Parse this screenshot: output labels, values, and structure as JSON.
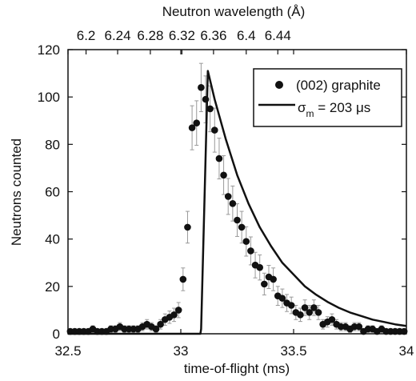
{
  "chart_data": {
    "type": "scatter",
    "xlabel": "time-of-flight (ms)",
    "ylabel": "Neutrons counted",
    "top_axis_label": "Neutron wavelength (Å)",
    "xlim": [
      32.5,
      34
    ],
    "ylim": [
      0,
      120
    ],
    "x_ticks": [
      "32.5",
      "33",
      "33.5",
      "34"
    ],
    "x_tick_values": [
      32.5,
      33,
      33.5,
      34
    ],
    "y_ticks": [
      "0",
      "20",
      "40",
      "60",
      "80",
      "100",
      "120"
    ],
    "y_tick_values": [
      0,
      20,
      40,
      60,
      80,
      100,
      120
    ],
    "top_ticks": [
      "6.2",
      "6.24",
      "6.28",
      "6.32",
      "6.36",
      "6.4",
      "6.44"
    ],
    "top_tick_positions_ms": [
      32.58,
      32.72,
      32.865,
      33.005,
      33.145,
      33.29,
      33.43
    ],
    "legend": {
      "placement": "top-right",
      "series_label": "(002) graphite",
      "model_label_prefix": "σ",
      "model_label_sub": "m",
      "model_label_suffix": " = 203 μs"
    },
    "series": [
      {
        "name": "(002) graphite",
        "style": "markers-with-errorbars",
        "x": [
          32.51,
          32.53,
          32.55,
          32.57,
          32.59,
          32.61,
          32.63,
          32.65,
          32.67,
          32.69,
          32.71,
          32.73,
          32.75,
          32.77,
          32.79,
          32.81,
          32.83,
          32.85,
          32.87,
          32.89,
          32.91,
          32.93,
          32.95,
          32.97,
          32.99,
          33.01,
          33.03,
          33.05,
          33.07,
          33.09,
          33.11,
          33.13,
          33.15,
          33.17,
          33.19,
          33.21,
          33.23,
          33.25,
          33.27,
          33.29,
          33.31,
          33.33,
          33.35,
          33.37,
          33.39,
          33.41,
          33.43,
          33.45,
          33.47,
          33.49,
          33.51,
          33.53,
          33.55,
          33.57,
          33.59,
          33.61,
          33.63,
          33.65,
          33.67,
          33.69,
          33.71,
          33.73,
          33.75,
          33.77,
          33.79,
          33.81,
          33.83,
          33.85,
          33.87,
          33.89,
          33.91,
          33.93,
          33.95,
          33.97,
          33.99
        ],
        "y": [
          1,
          1,
          1,
          1,
          1,
          2,
          1,
          1,
          1,
          2,
          2,
          3,
          2,
          2,
          2,
          2,
          3,
          4,
          3,
          2,
          4,
          6,
          7,
          8,
          10,
          23,
          45,
          87,
          89,
          104,
          99,
          95,
          86,
          74,
          67,
          58,
          55,
          48,
          45,
          39,
          35,
          29,
          28,
          21,
          24,
          23,
          16,
          15,
          13,
          12,
          9,
          8,
          11,
          9,
          11,
          9,
          4,
          5,
          6,
          4,
          3,
          3,
          2,
          3,
          3,
          1,
          2,
          2,
          1,
          2,
          1,
          1,
          1,
          1,
          1
        ],
        "err": [
          1,
          1,
          1,
          1,
          1,
          1.4,
          1,
          1,
          1,
          1.4,
          1.4,
          1.7,
          1.4,
          1.4,
          1.4,
          1.4,
          1.7,
          2,
          1.7,
          1.4,
          2,
          2.4,
          2.6,
          2.8,
          3.2,
          4.8,
          6.7,
          9.3,
          9.4,
          10.2,
          9.9,
          9.7,
          9.3,
          8.6,
          8.2,
          7.6,
          7.4,
          6.9,
          6.7,
          6.2,
          5.9,
          5.4,
          5.3,
          4.6,
          4.9,
          4.8,
          4,
          3.9,
          3.6,
          3.5,
          3,
          2.8,
          3.3,
          3,
          3.3,
          3,
          2,
          2.2,
          2.4,
          2,
          1.7,
          1.7,
          1.4,
          1.7,
          1.7,
          1,
          1.4,
          1.4,
          1,
          1.4,
          1,
          1,
          1,
          1,
          1
        ]
      },
      {
        "name": "σm = 203 μs",
        "style": "line",
        "x": [
          32.5,
          33.087,
          33.09,
          33.12,
          33.15,
          33.2,
          33.25,
          33.3,
          33.35,
          33.4,
          33.45,
          33.5,
          33.55,
          33.6,
          33.65,
          33.7,
          33.75,
          33.8,
          33.85,
          33.9,
          33.95,
          34
        ],
        "y": [
          0,
          0,
          2,
          111,
          99,
          82,
          67,
          55,
          45,
          37,
          30,
          25,
          20,
          16.5,
          13.5,
          11,
          9,
          7.5,
          6,
          5,
          4,
          3.3
        ]
      }
    ]
  }
}
